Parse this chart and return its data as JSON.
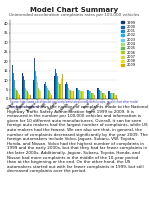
{
  "title": "Model Chart Summary",
  "subtitle": "Unintended acceleration complaints rates per 100,000 vehicles",
  "categories": [
    "Volvo",
    "Jaguar",
    "Subaru",
    "VW",
    "Toyota",
    "Honda",
    "Nissan",
    "Ford",
    "Chrysler",
    "GM"
  ],
  "years": [
    "1999",
    "2000",
    "2001",
    "2002",
    "2003",
    "2004",
    "2005",
    "2006",
    "2007",
    "2008",
    "2009"
  ],
  "colors": [
    "#1a3a6b",
    "#1a5fa8",
    "#1a8cc8",
    "#26b0d9",
    "#6dcde8",
    "#a8dd88",
    "#66bb44",
    "#aacc22",
    "#ccdd44",
    "#eedd22",
    "#ddaa00"
  ],
  "data": {
    "Volvo": [
      38,
      18,
      14,
      10,
      8,
      6,
      5,
      4,
      3,
      3,
      2
    ],
    "Jaguar": [
      14,
      12,
      10,
      8,
      6,
      5,
      4,
      3,
      3,
      2,
      2
    ],
    "Subaru": [
      10,
      22,
      18,
      15,
      12,
      9,
      7,
      6,
      5,
      4,
      3
    ],
    "VW": [
      8,
      10,
      9,
      7,
      6,
      5,
      5,
      4,
      3,
      3,
      2
    ],
    "Toyota": [
      12,
      16,
      14,
      12,
      10,
      9,
      8,
      8,
      9,
      11,
      13
    ],
    "Honda": [
      8,
      9,
      8,
      7,
      6,
      5,
      5,
      4,
      4,
      4,
      4
    ],
    "Nissan": [
      6,
      7,
      6,
      5,
      5,
      4,
      4,
      4,
      4,
      4,
      3
    ],
    "Ford": [
      5,
      5,
      5,
      4,
      4,
      4,
      3,
      3,
      3,
      3,
      2
    ],
    "Chrysler": [
      6,
      6,
      5,
      5,
      4,
      4,
      3,
      3,
      3,
      3,
      2
    ],
    "GM": [
      4,
      4,
      4,
      3,
      3,
      3,
      3,
      3,
      3,
      2,
      2
    ]
  },
  "ylim": [
    0,
    42
  ],
  "bg_color": "#ffffff",
  "page_bg": "#f0f0f0",
  "bar_width": 0.072,
  "title_fontsize": 5.0,
  "subtitle_fontsize": 3.0,
  "tick_fontsize": 2.6,
  "legend_fontsize": 2.5,
  "body_text": "The bar chart shows the number of complaints made to the National Highway Traffic Safety Administration from 1999 to 2009. It is measured in the number per 100,000 vehicles and information is given for 10 different auto manufacturers. Overall, it can be seen foreign auto makers had the largest number of complaints, while US auto makers had the fewest. We can also see that, in general, the number of complaints decreased significantly by the year 2009. The foreign automakers include Volvo, Jaguar, Subaru, VW, Toyota, Honda, and Nissan. Volvo had the highest number of complaints in 1999 and the early 2000s, but that they had far fewer complaints in the later 2000s. Additionally, Jaguar, Subaru, Toyota, Honda, and Nissan had more complaints in the middle of the 10-year period than at the beginning or the end. On the other hand, the US automakers started out with far fewer complaints in 1999, but still decreased complaints over the period.",
  "body_fontsize": 3.0,
  "source_text": "Source: http://www-odi.nhtsa.dot.gov/complaints/complaintsByVehicle.aspx, model chart other model information complaints"
}
